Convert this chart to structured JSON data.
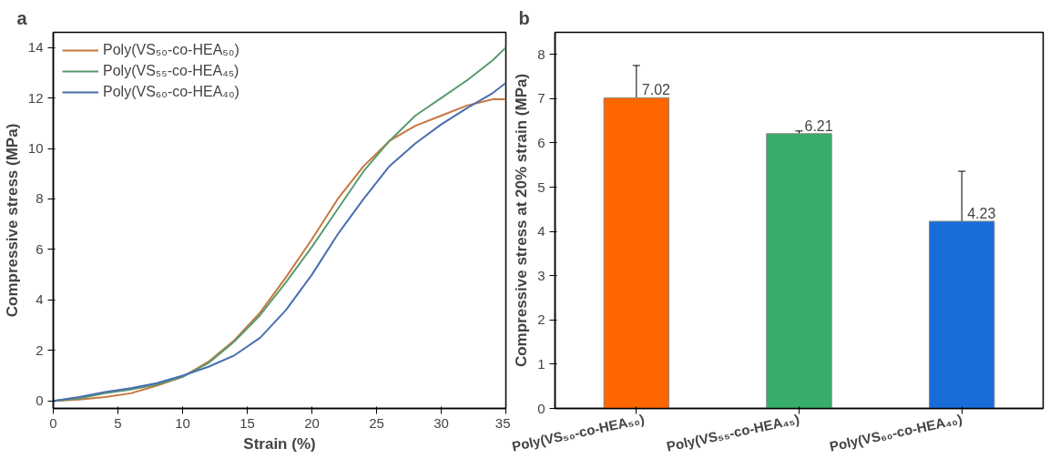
{
  "chart_data": [
    {
      "type": "line",
      "title": "a",
      "xlabel": "Strain (%)",
      "ylabel": "Compressive stress (MPa)",
      "xlim": [
        0,
        35
      ],
      "ylim": [
        -0.3,
        14.6
      ],
      "xticks": [
        0,
        5,
        10,
        15,
        20,
        25,
        30,
        35
      ],
      "yticks": [
        0,
        2,
        4,
        6,
        8,
        10,
        12,
        14
      ],
      "grid": false,
      "legend": "top left",
      "line_style": "solid",
      "x": [
        0,
        2,
        4,
        6,
        8,
        10,
        12,
        14,
        16,
        18,
        20,
        22,
        24,
        26,
        28,
        30,
        32,
        34,
        35
      ],
      "series": [
        {
          "name": "Poly(VS₅₀-co-HEA₅₀)",
          "color": "#c8773f",
          "values": [
            0,
            0.05,
            0.15,
            0.3,
            0.6,
            0.95,
            1.55,
            2.4,
            3.5,
            4.9,
            6.4,
            8.0,
            9.3,
            10.3,
            10.9,
            11.3,
            11.7,
            11.95,
            11.95
          ]
        },
        {
          "name": "Poly(VS₅₅-co-HEA₄₅)",
          "color": "#5a9a70",
          "values": [
            0,
            0.1,
            0.3,
            0.45,
            0.65,
            0.95,
            1.5,
            2.35,
            3.4,
            4.7,
            6.1,
            7.6,
            9.1,
            10.3,
            11.3,
            12.0,
            12.7,
            13.5,
            14.0
          ]
        },
        {
          "name": "Poly(VS₆₀-co-HEA₄₀)",
          "color": "#4a6fb0",
          "values": [
            0,
            0.15,
            0.35,
            0.5,
            0.7,
            1.0,
            1.35,
            1.8,
            2.5,
            3.6,
            5.0,
            6.6,
            8.0,
            9.3,
            10.2,
            10.95,
            11.6,
            12.2,
            12.6
          ]
        }
      ]
    },
    {
      "type": "bar",
      "title": "b",
      "ylabel": "Compressive stress at 20% strain (MPa)",
      "ylim": [
        0,
        8.5
      ],
      "yticks": [
        0,
        1,
        2,
        3,
        4,
        5,
        6,
        7,
        8
      ],
      "grid": false,
      "data_labels": true,
      "categories": [
        "Poly(VS₅₀-co-HEA₅₀)",
        "Poly(VS₅₅-co-HEA₄₅)",
        "Poly(VS₆₀-co-HEA₄₀)"
      ],
      "values": [
        7.02,
        6.21,
        4.23
      ],
      "colors": [
        "#ff6600",
        "#36ad6a",
        "#1a6cd9"
      ],
      "errors": [
        0.73,
        0.06,
        1.13
      ]
    }
  ]
}
